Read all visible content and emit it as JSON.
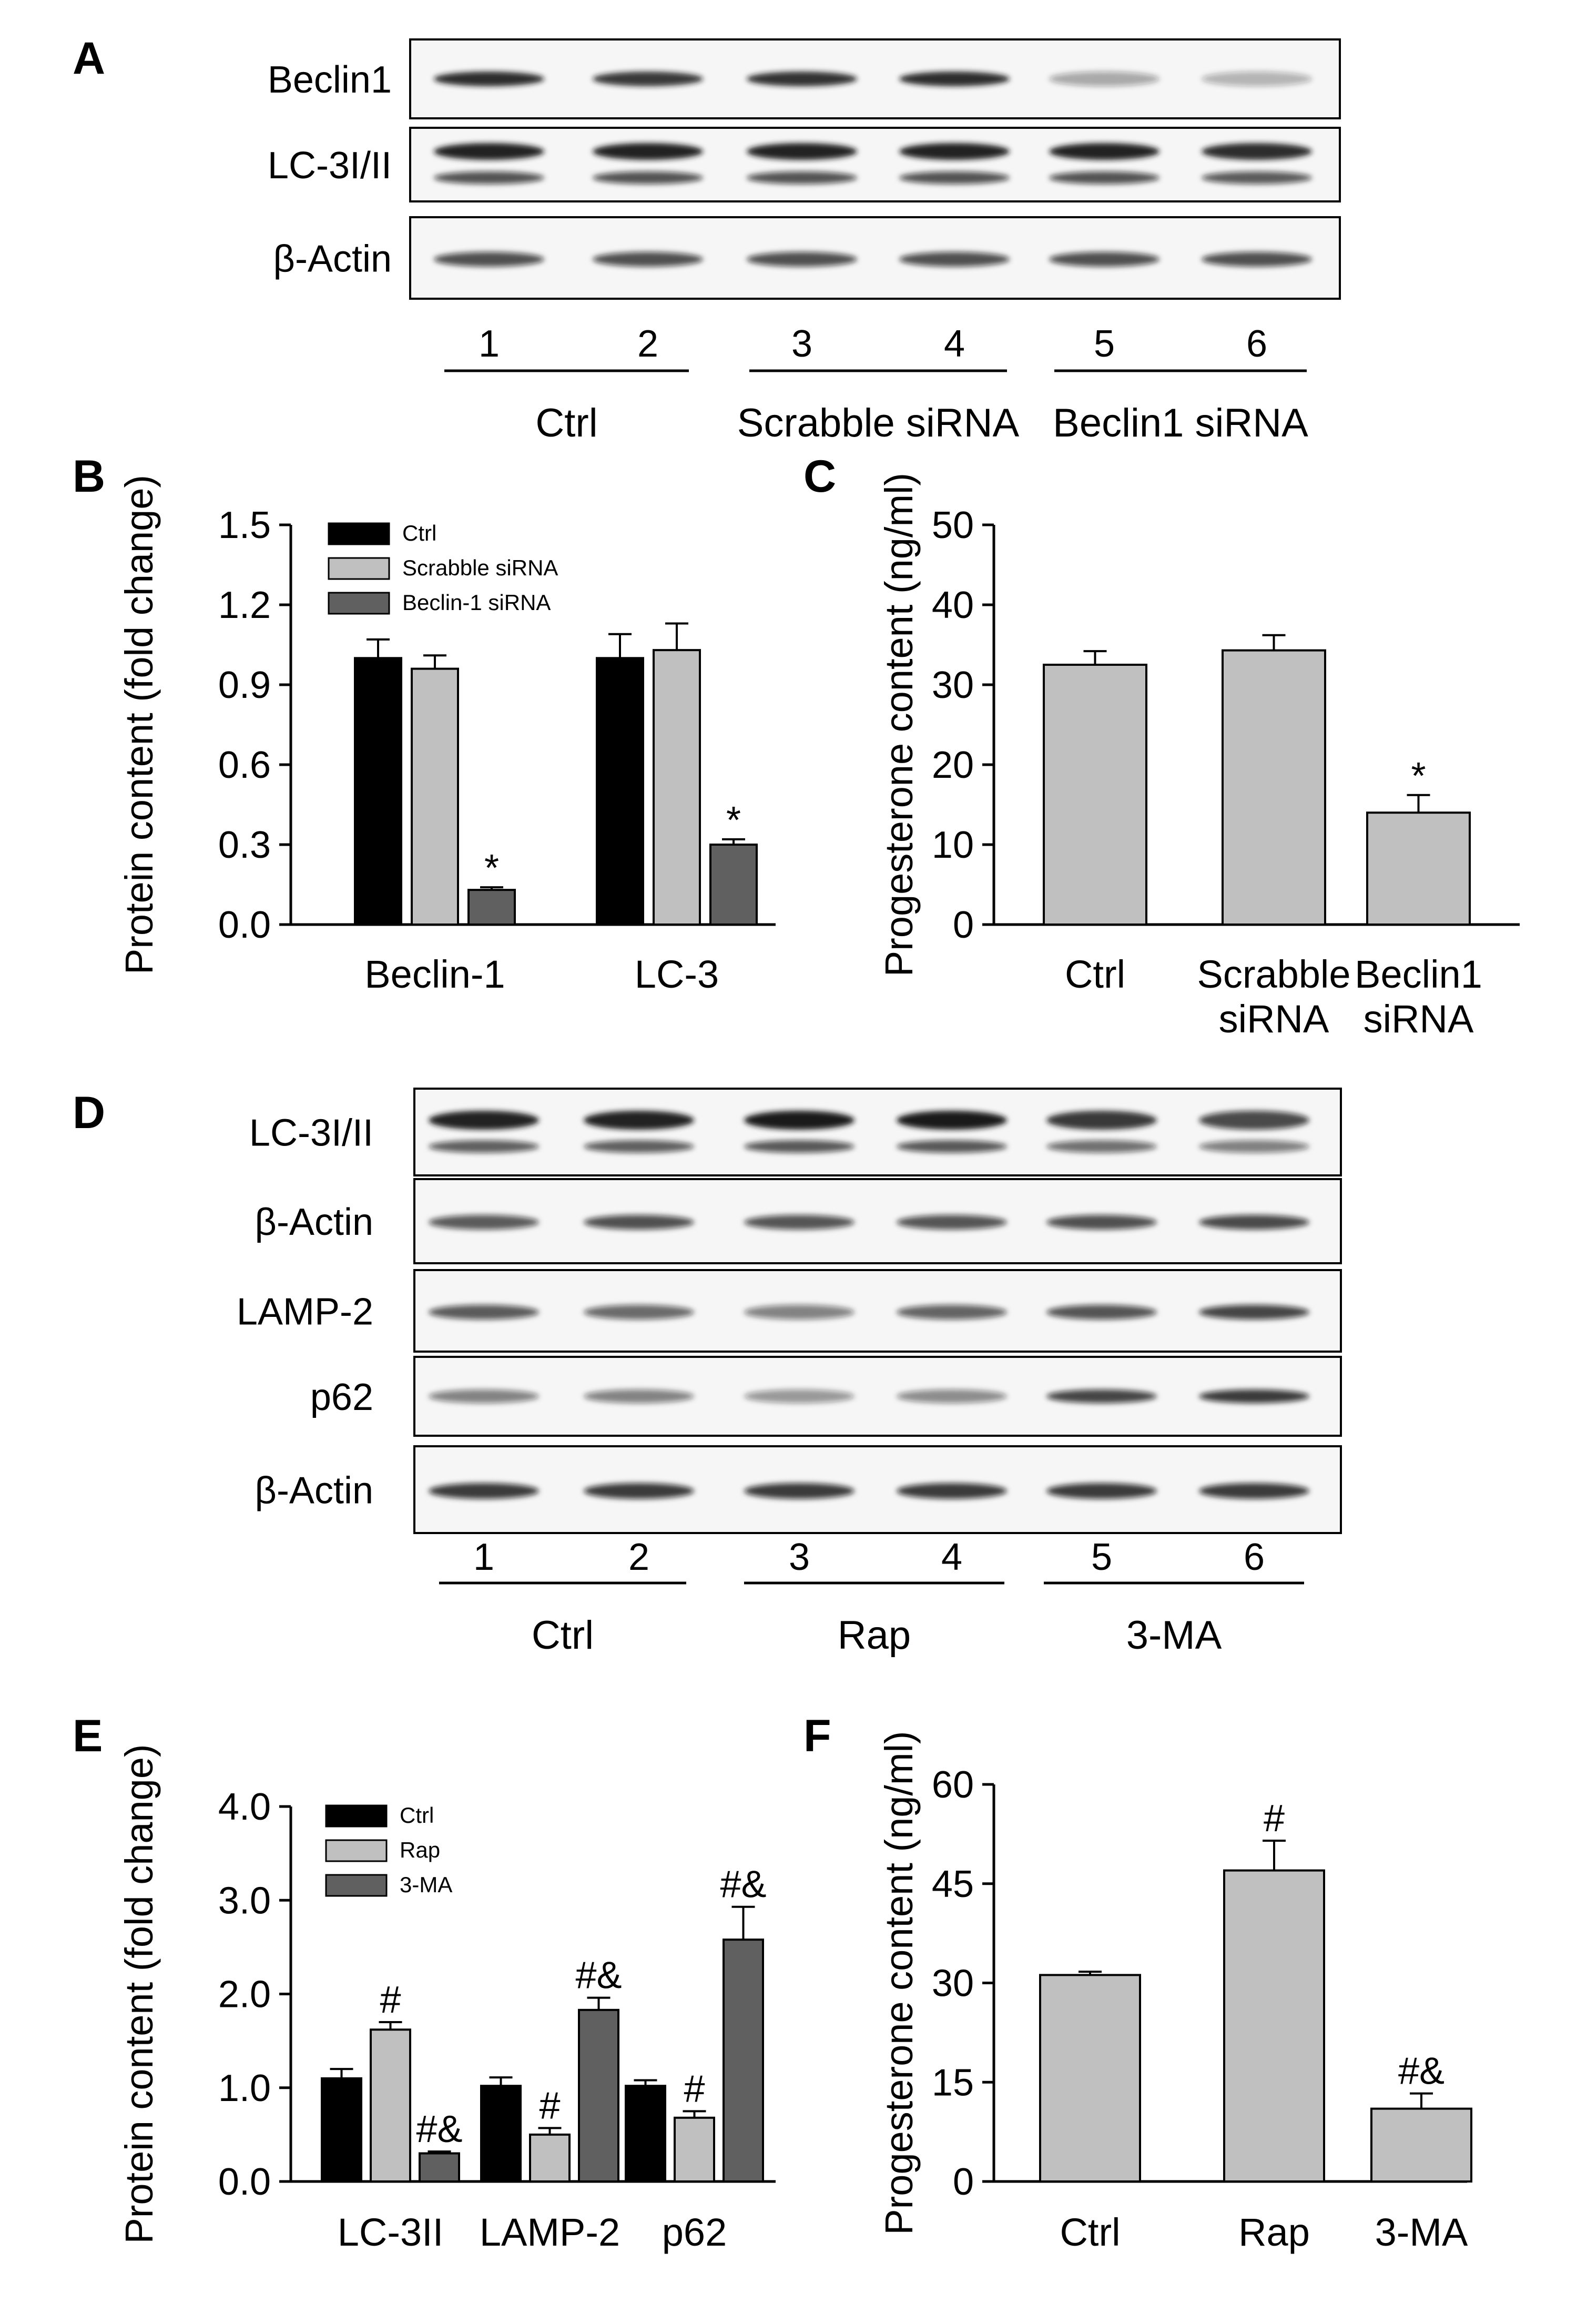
{
  "panel_letters": [
    "A",
    "B",
    "C",
    "D",
    "E",
    "F"
  ],
  "panel_a": {
    "rows": [
      "Beclin1",
      "LC-3I/II",
      "β-Actin"
    ],
    "lanes": [
      "1",
      "2",
      "3",
      "4",
      "5",
      "6"
    ],
    "groups": [
      "Ctrl",
      "Scrabble siRNA",
      "Beclin1 siRNA"
    ]
  },
  "panel_d": {
    "rows": [
      "LC-3I/II",
      "β-Actin",
      "LAMP-2",
      "p62",
      "β-Actin"
    ],
    "lanes": [
      "1",
      "2",
      "3",
      "4",
      "5",
      "6"
    ],
    "groups": [
      "Ctrl",
      "Rap",
      "3-MA"
    ]
  },
  "chart_data": [
    {
      "panel": "B",
      "type": "bar",
      "ylabel": "Protein content (fold change)",
      "ylim": [
        0,
        1.5
      ],
      "yticks": [
        "0.0",
        "0.3",
        "0.6",
        "0.9",
        "1.2",
        "1.5"
      ],
      "categories": [
        "Beclin-1",
        "LC-3"
      ],
      "series": [
        {
          "name": "Ctrl",
          "values": [
            1.0,
            1.0
          ],
          "errors": [
            0.07,
            0.09
          ],
          "color": "#000000"
        },
        {
          "name": "Scrabble siRNA",
          "values": [
            0.96,
            1.03
          ],
          "errors": [
            0.05,
            0.1
          ],
          "color": "#c0c0c0"
        },
        {
          "name": "Beclin-1 siRNA",
          "values": [
            0.13,
            0.3
          ],
          "errors": [
            0.01,
            0.02
          ],
          "color": "#606060"
        }
      ],
      "annotations": [
        {
          "category": 0,
          "series": 2,
          "text": "*"
        },
        {
          "category": 1,
          "series": 2,
          "text": "*"
        }
      ],
      "legend": "top-left"
    },
    {
      "panel": "C",
      "type": "bar",
      "ylabel": "Progesterone content (ng/ml)",
      "ylim": [
        0,
        50
      ],
      "yticks": [
        "0",
        "10",
        "20",
        "30",
        "40",
        "50"
      ],
      "categories": [
        [
          "Ctrl"
        ],
        [
          "Scrabble",
          "siRNA"
        ],
        [
          "Beclin1",
          "siRNA"
        ]
      ],
      "values": [
        32.5,
        34.3,
        14
      ],
      "errors": [
        1.7,
        1.9,
        2.2
      ],
      "color": "#c0c0c0",
      "annotations": [
        {
          "index": 2,
          "text": "*"
        }
      ]
    },
    {
      "panel": "E",
      "type": "bar",
      "ylabel": "Protein content (fold change)",
      "ylim": [
        0,
        4.0
      ],
      "yticks": [
        "0.0",
        "1.0",
        "2.0",
        "3.0",
        "4.0"
      ],
      "categories": [
        "LC-3II",
        "LAMP-2",
        "p62"
      ],
      "series": [
        {
          "name": "Ctrl",
          "values": [
            1.1,
            1.02,
            1.02
          ],
          "errors": [
            0.1,
            0.09,
            0.06
          ],
          "color": "#000000"
        },
        {
          "name": "Rap",
          "values": [
            1.62,
            0.5,
            0.68
          ],
          "errors": [
            0.08,
            0.07,
            0.07
          ],
          "color": "#c0c0c0"
        },
        {
          "name": "3-MA",
          "values": [
            0.3,
            1.83,
            2.58
          ],
          "errors": [
            0.02,
            0.13,
            0.35
          ],
          "color": "#606060"
        }
      ],
      "annotations": [
        {
          "category": 0,
          "series": 1,
          "text": "#"
        },
        {
          "category": 0,
          "series": 2,
          "text": "#&"
        },
        {
          "category": 1,
          "series": 1,
          "text": "#"
        },
        {
          "category": 1,
          "series": 2,
          "text": "#&"
        },
        {
          "category": 2,
          "series": 1,
          "text": "#"
        },
        {
          "category": 2,
          "series": 2,
          "text": "#&"
        }
      ],
      "legend": "top-left"
    },
    {
      "panel": "F",
      "type": "bar",
      "ylabel": "Progesterone content (ng/ml)",
      "ylim": [
        0,
        60
      ],
      "yticks": [
        "0",
        "15",
        "30",
        "45",
        "60"
      ],
      "categories": [
        [
          "Ctrl"
        ],
        [
          "Rap"
        ],
        [
          "3-MA"
        ]
      ],
      "values": [
        31.2,
        47,
        11
      ],
      "errors": [
        0.5,
        4.5,
        2.3
      ],
      "color": "#c0c0c0",
      "annotations": [
        {
          "index": 1,
          "text": "#"
        },
        {
          "index": 2,
          "text": "#&"
        }
      ]
    }
  ]
}
